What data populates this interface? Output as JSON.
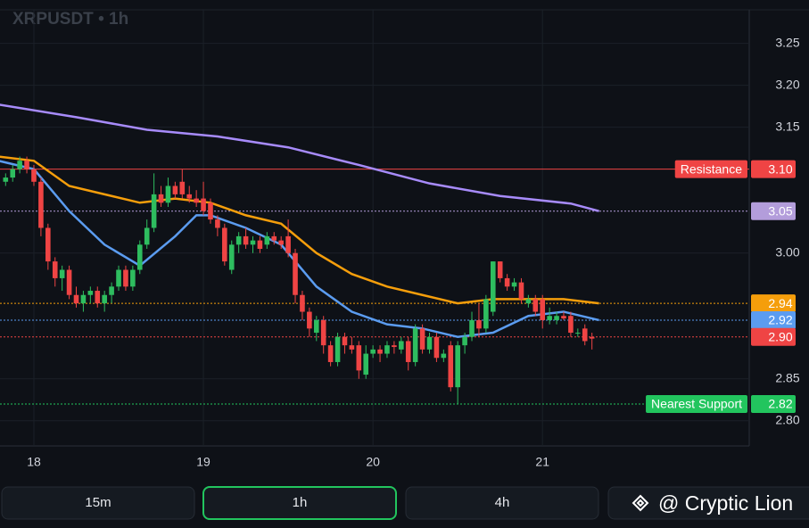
{
  "chart_data": {
    "type": "candlestick",
    "title": "XRPUSDT • 1h",
    "ylim": [
      2.77,
      3.29
    ],
    "yticks": [
      3.25,
      {
        "value": 3.2,
        "label": "3.20"
      },
      3.15,
      {
        "value": 3.0,
        "label": "3.00"
      },
      2.85,
      {
        "value": 2.8,
        "label": "2.80"
      }
    ],
    "xticks": [
      {
        "value": 4,
        "label": "18"
      },
      {
        "value": 28,
        "label": "19"
      },
      {
        "value": 52,
        "label": "20"
      },
      {
        "value": 76,
        "label": "21"
      }
    ],
    "up_color": "#2ebd5f",
    "down_color": "#ef4444",
    "candles": [
      [
        3.085,
        3.095,
        3.08,
        3.09
      ],
      [
        3.09,
        3.105,
        3.085,
        3.1
      ],
      [
        3.1,
        3.115,
        3.095,
        3.11
      ],
      [
        3.11,
        3.115,
        3.095,
        3.1
      ],
      [
        3.1,
        3.105,
        3.08,
        3.085
      ],
      [
        3.085,
        3.09,
        3.02,
        3.03
      ],
      [
        3.03,
        3.035,
        2.98,
        2.99
      ],
      [
        2.99,
        2.995,
        2.96,
        2.97
      ],
      [
        2.97,
        2.985,
        2.955,
        2.98
      ],
      [
        2.98,
        2.985,
        2.945,
        2.95
      ],
      [
        2.95,
        2.96,
        2.935,
        2.94
      ],
      [
        2.94,
        2.955,
        2.93,
        2.95
      ],
      [
        2.95,
        2.96,
        2.94,
        2.955
      ],
      [
        2.955,
        2.96,
        2.935,
        2.94
      ],
      [
        2.94,
        2.955,
        2.93,
        2.95
      ],
      [
        2.95,
        2.965,
        2.94,
        2.96
      ],
      [
        2.96,
        2.985,
        2.955,
        2.98
      ],
      [
        2.98,
        2.985,
        2.955,
        2.96
      ],
      [
        2.96,
        2.985,
        2.955,
        2.98
      ],
      [
        2.98,
        3.015,
        2.975,
        3.01
      ],
      [
        3.01,
        3.04,
        3.005,
        3.03
      ],
      [
        3.03,
        3.095,
        3.025,
        3.07
      ],
      [
        3.07,
        3.08,
        3.055,
        3.06
      ],
      [
        3.06,
        3.09,
        3.055,
        3.08
      ],
      [
        3.08,
        3.085,
        3.065,
        3.07
      ],
      [
        3.085,
        3.1,
        3.065,
        3.07
      ],
      [
        3.07,
        3.08,
        3.06,
        3.065
      ],
      [
        3.065,
        3.075,
        3.055,
        3.06
      ],
      [
        3.065,
        3.085,
        3.045,
        3.05
      ],
      [
        3.06,
        3.065,
        3.035,
        3.04
      ],
      [
        3.04,
        3.045,
        3.02,
        3.03
      ],
      [
        3.03,
        3.035,
        2.985,
        2.99
      ],
      [
        2.98,
        3.015,
        2.975,
        3.01
      ],
      [
        3.01,
        3.025,
        3.0,
        3.02
      ],
      [
        3.02,
        3.03,
        3.005,
        3.01
      ],
      [
        3.01,
        3.02,
        3.0,
        3.015
      ],
      [
        3.015,
        3.02,
        3.0,
        3.005
      ],
      [
        3.01,
        3.025,
        3.005,
        3.02
      ],
      [
        3.02,
        3.025,
        3.01,
        3.015
      ],
      [
        3.015,
        3.02,
        3.005,
        3.01
      ],
      [
        3.02,
        3.04,
        2.995,
        3.0
      ],
      [
        3.0,
        3.005,
        2.94,
        2.95
      ],
      [
        2.95,
        2.955,
        2.92,
        2.93
      ],
      [
        2.93,
        2.935,
        2.9,
        2.91
      ],
      [
        2.905,
        2.925,
        2.895,
        2.92
      ],
      [
        2.92,
        2.925,
        2.88,
        2.89
      ],
      [
        2.89,
        2.895,
        2.865,
        2.87
      ],
      [
        2.87,
        2.905,
        2.865,
        2.9
      ],
      [
        2.9,
        2.905,
        2.88,
        2.89
      ],
      [
        2.89,
        2.9,
        2.88,
        2.885
      ],
      [
        2.89,
        2.895,
        2.85,
        2.86
      ],
      [
        2.855,
        2.89,
        2.85,
        2.88
      ],
      [
        2.88,
        2.89,
        2.875,
        2.885
      ],
      [
        2.885,
        2.89,
        2.87,
        2.88
      ],
      [
        2.88,
        2.895,
        2.875,
        2.89
      ],
      [
        2.89,
        2.895,
        2.88,
        2.888
      ],
      [
        2.885,
        2.9,
        2.88,
        2.895
      ],
      [
        2.895,
        2.9,
        2.86,
        2.87
      ],
      [
        2.87,
        2.915,
        2.865,
        2.91
      ],
      [
        2.91,
        2.915,
        2.88,
        2.885
      ],
      [
        2.885,
        2.905,
        2.88,
        2.9
      ],
      [
        2.9,
        2.905,
        2.87,
        2.875
      ],
      [
        2.875,
        2.885,
        2.87,
        2.88
      ],
      [
        2.89,
        2.895,
        2.835,
        2.84
      ],
      [
        2.84,
        2.895,
        2.82,
        2.89
      ],
      [
        2.89,
        2.905,
        2.88,
        2.9
      ],
      [
        2.9,
        2.93,
        2.895,
        2.92
      ],
      [
        2.92,
        2.94,
        2.9,
        2.91
      ],
      [
        2.91,
        2.95,
        2.905,
        2.945
      ],
      [
        2.93,
        2.99,
        2.925,
        2.99
      ],
      [
        2.99,
        2.99,
        2.965,
        2.97
      ],
      [
        2.97,
        2.975,
        2.955,
        2.96
      ],
      [
        2.96,
        2.97,
        2.955,
        2.965
      ],
      [
        2.965,
        2.97,
        2.94,
        2.945
      ],
      [
        2.94,
        2.95,
        2.935,
        2.945
      ],
      [
        2.945,
        2.95,
        2.925,
        2.93
      ],
      [
        2.945,
        2.95,
        2.91,
        2.92
      ],
      [
        2.92,
        2.935,
        2.915,
        2.925
      ],
      [
        2.92,
        2.93,
        2.915,
        2.925
      ],
      [
        2.925,
        2.93,
        2.92,
        2.922
      ],
      [
        2.925,
        2.93,
        2.9,
        2.905
      ],
      [
        2.905,
        2.91,
        2.9,
        2.905
      ],
      [
        2.91,
        2.915,
        2.89,
        2.895
      ],
      [
        2.9,
        2.905,
        2.885,
        2.898
      ]
    ],
    "series": [
      {
        "color": "#a78bfa",
        "x": [
          -1,
          10,
          20,
          30,
          40,
          50,
          60,
          70,
          80,
          84
        ],
        "values": [
          3.177,
          3.162,
          3.147,
          3.139,
          3.126,
          3.105,
          3.083,
          3.068,
          3.059,
          3.05
        ]
      },
      {
        "color": "#f59e0b",
        "x": [
          -1,
          4,
          9,
          14,
          19,
          24,
          29,
          34,
          39,
          44,
          49,
          54,
          59,
          64,
          69,
          74,
          79,
          84
        ],
        "values": [
          3.115,
          3.11,
          3.08,
          3.07,
          3.06,
          3.065,
          3.06,
          3.045,
          3.035,
          3.0,
          2.975,
          2.96,
          2.95,
          2.94,
          2.945,
          2.945,
          2.945,
          2.94
        ]
      },
      {
        "color": "#5b9cf0",
        "x": [
          -1,
          4,
          9,
          14,
          19,
          24,
          27,
          29,
          34,
          39,
          44,
          49,
          54,
          59,
          64,
          69,
          74,
          79,
          84
        ],
        "values": [
          3.11,
          3.1,
          3.05,
          3.01,
          2.985,
          3.02,
          3.045,
          3.045,
          3.03,
          3.01,
          2.96,
          2.93,
          2.915,
          2.91,
          2.9,
          2.905,
          2.925,
          2.93,
          2.92
        ]
      }
    ],
    "levels": [
      {
        "name": "Resistance",
        "value": 3.1,
        "value_label": "3.10",
        "color": "#ef4444",
        "style": "solid"
      },
      {
        "value": 3.05,
        "value_label": "3.05",
        "color": "#b39ddb",
        "style": "dotted"
      },
      {
        "value": 2.94,
        "value_label": "2.94",
        "color": "#f59e0b",
        "style": "dotted"
      },
      {
        "value": 2.92,
        "value_label": "2.92",
        "color": "#5b9cf0",
        "style": "dotted"
      },
      {
        "value": 2.9,
        "value_label": "2.90",
        "color": "#ef4444",
        "style": "dotted"
      },
      {
        "name": "Nearest Support",
        "value": 2.82,
        "value_label": "2.82",
        "color": "#22c55e",
        "style": "dotted"
      }
    ]
  },
  "buttons": [
    "15m",
    "1h",
    "4h"
  ],
  "selected_button": 1,
  "watermark": "@ Cryptic Lion"
}
